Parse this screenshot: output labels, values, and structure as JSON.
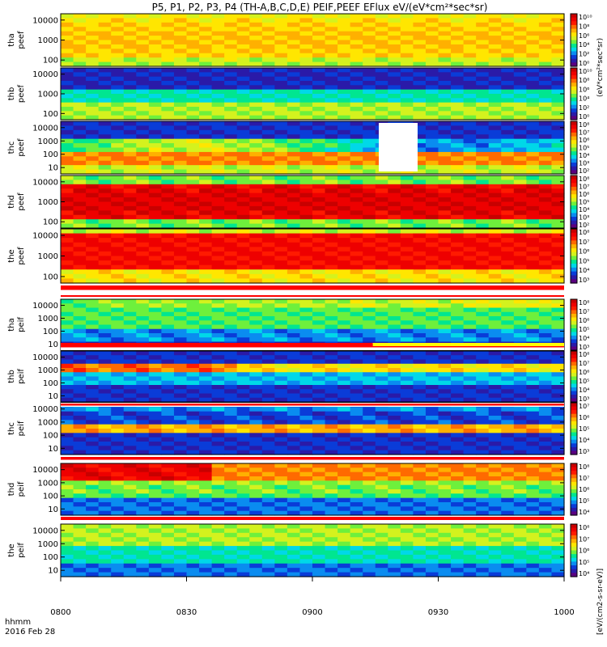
{
  "colors": {
    "colormap": [
      "#5a0080",
      "#2a1aa8",
      "#0a3cd8",
      "#0a8cf0",
      "#00d8e8",
      "#00e690",
      "#6ef03c",
      "#d4f21e",
      "#ffe600",
      "#ffb000",
      "#ff6a00",
      "#ff1a00",
      "#ee0000",
      "#c80000"
    ],
    "flag_red": "#ff0000",
    "flag_yellow": "#ffff00",
    "frame": "#000000"
  },
  "chart_data": {
    "type": "heatmap",
    "title": "P5, P1, P2, P3, P4 (TH-A,B,C,D,E) PEIF,PEEF EFlux eV/(eV*cm²*sec*sr)",
    "x_ticks": [
      "0800",
      "0830",
      "0900",
      "0930",
      "1000"
    ],
    "x_range_minutes": [
      480,
      600
    ],
    "time_label_line1": "hhmm",
    "time_label_line2": "2016 Feb 28",
    "y_scale": "log",
    "colorbar_unit_label": "[eV/(cm2-s-sr-eV)]",
    "colorbar_side_label": "(eV*cm²*sec*sr)",
    "panels": [
      {
        "name": "tha peef",
        "label_line1": "tha",
        "label_line2": "peef",
        "y_ticks": [
          "10000",
          "1000",
          "100"
        ],
        "colorbar_ticks": [
          "10¹⁰",
          "10⁸",
          "10⁶",
          "10⁴",
          "10²",
          "10⁰"
        ]
      },
      {
        "name": "thb peef",
        "label_line1": "thb",
        "label_line2": "peef",
        "y_ticks": [
          "10000",
          "1000",
          "100"
        ],
        "colorbar_ticks": [
          "10¹⁰",
          "10⁸",
          "10⁶",
          "10⁴",
          "10²",
          "10⁰"
        ]
      },
      {
        "name": "thc peef",
        "label_line1": "thc",
        "label_line2": "peef",
        "y_ticks": [
          "10000",
          "1000",
          "100",
          "10"
        ],
        "colorbar_ticks": [
          "10⁸",
          "10⁷",
          "10⁶",
          "10⁵",
          "10⁴",
          "10³",
          "10²"
        ]
      },
      {
        "name": "thd peef",
        "label_line1": "thd",
        "label_line2": "peef",
        "y_ticks": [
          "10000",
          "1000",
          "100"
        ],
        "colorbar_ticks": [
          "10⁸",
          "10⁷",
          "10⁶",
          "10⁵",
          "10⁴",
          "10³",
          "10²"
        ]
      },
      {
        "name": "the peef",
        "label_line1": "the",
        "label_line2": "peef",
        "y_ticks": [
          "10000",
          "1000",
          "100"
        ],
        "colorbar_ticks": [
          "10⁸",
          "10⁷",
          "10⁶",
          "10⁵",
          "10⁴",
          "10³"
        ]
      },
      {
        "name": "tha peif",
        "label_line1": "tha",
        "label_line2": "peif",
        "y_ticks": [
          "10000",
          "1000",
          "100",
          "10"
        ],
        "colorbar_ticks": [
          "10⁸",
          "10⁷",
          "10⁶",
          "10⁵",
          "10⁴",
          "10³"
        ]
      },
      {
        "name": "thb peif",
        "label_line1": "thb",
        "label_line2": "peif",
        "y_ticks": [
          "10000",
          "1000",
          "100",
          "10"
        ],
        "colorbar_ticks": [
          "10⁸",
          "10⁷",
          "10⁶",
          "10⁵",
          "10⁴",
          "10³"
        ]
      },
      {
        "name": "thc peif",
        "label_line1": "thc",
        "label_line2": "peif",
        "y_ticks": [
          "10000",
          "1000",
          "100",
          "10"
        ],
        "colorbar_ticks": [
          "10⁷",
          "10⁶",
          "10⁵",
          "10⁴",
          "10³"
        ]
      },
      {
        "name": "thd peif",
        "label_line1": "thd",
        "label_line2": "peif",
        "y_ticks": [
          "10000",
          "1000",
          "100",
          "10"
        ],
        "colorbar_ticks": [
          "10⁸",
          "10⁷",
          "10⁶",
          "10⁵",
          "10⁴"
        ]
      },
      {
        "name": "the peif",
        "label_line1": "the",
        "label_line2": "peif",
        "y_ticks": [
          "10000",
          "1000",
          "100",
          "10"
        ],
        "colorbar_ticks": [
          "10⁸",
          "10⁷",
          "10⁶",
          "10⁵",
          "10⁴"
        ]
      }
    ]
  }
}
